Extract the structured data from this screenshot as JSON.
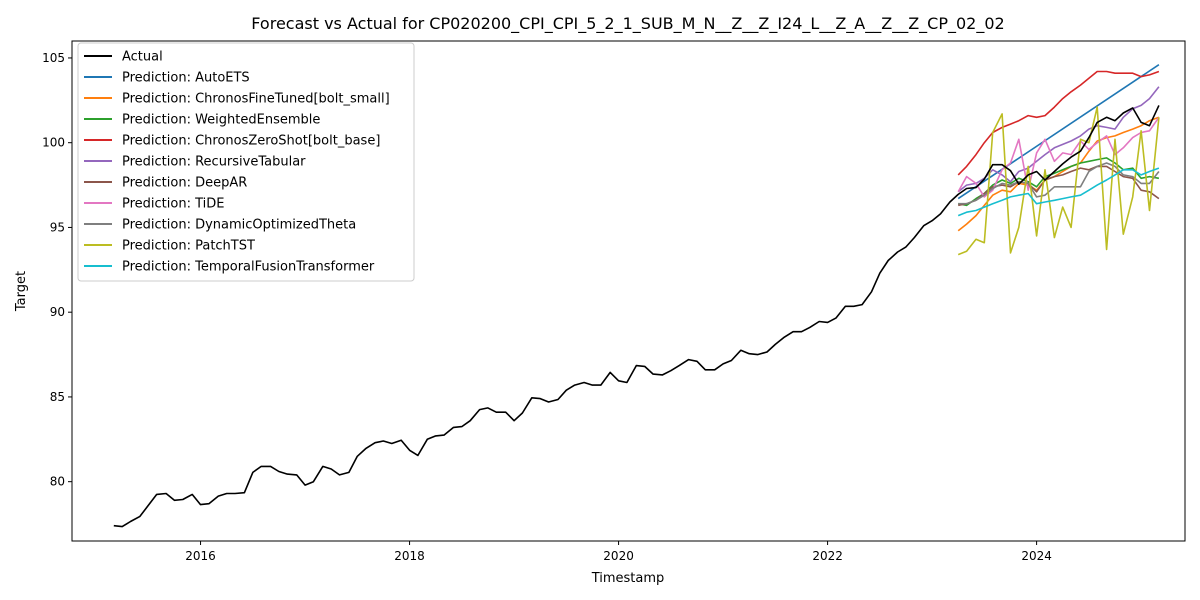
{
  "chart_data": {
    "type": "line",
    "title": "Forecast vs Actual for CP020200_CPI_CPI_5_2_1_SUB_M_N__Z__Z_I24_L__Z_A__Z__Z_CP_02_02",
    "xlabel": "Timestamp",
    "ylabel": "Target",
    "xlim": [
      2014.77,
      2025.42
    ],
    "ylim": [
      76.5,
      106.0
    ],
    "x_ticks": [
      2016,
      2018,
      2020,
      2022,
      2024
    ],
    "y_ticks": [
      80,
      85,
      90,
      95,
      100,
      105
    ],
    "grid": false,
    "legend_position": "top-left",
    "series": [
      {
        "name": "Actual",
        "color": "#000000",
        "x": [
          2015.17,
          2015.25,
          2015.33,
          2015.42,
          2015.5,
          2015.58,
          2015.67,
          2015.75,
          2015.83,
          2015.92,
          2016.0,
          2016.08,
          2016.17,
          2016.25,
          2016.33,
          2016.42,
          2016.5,
          2016.58,
          2016.67,
          2016.75,
          2016.83,
          2016.92,
          2017.0,
          2017.08,
          2017.17,
          2017.25,
          2017.33,
          2017.42,
          2017.5,
          2017.58,
          2017.67,
          2017.75,
          2017.83,
          2017.92,
          2018.0,
          2018.08,
          2018.17,
          2018.25,
          2018.33,
          2018.42,
          2018.5,
          2018.58,
          2018.67,
          2018.75,
          2018.83,
          2018.92,
          2019.0,
          2019.08,
          2019.17,
          2019.25,
          2019.33,
          2019.42,
          2019.5,
          2019.58,
          2019.67,
          2019.75,
          2019.83,
          2019.92,
          2020.0,
          2020.08,
          2020.17,
          2020.25,
          2020.33,
          2020.42,
          2020.5,
          2020.58,
          2020.67,
          2020.75,
          2020.83,
          2020.92,
          2021.0,
          2021.08,
          2021.17,
          2021.25,
          2021.33,
          2021.42,
          2021.5,
          2021.58,
          2021.67,
          2021.75,
          2021.83,
          2021.92,
          2022.0,
          2022.08,
          2022.17,
          2022.25,
          2022.33,
          2022.42,
          2022.5,
          2022.58,
          2022.67,
          2022.75,
          2022.83,
          2022.92,
          2023.0,
          2023.08,
          2023.17,
          2023.25,
          2023.33,
          2023.42,
          2023.5,
          2023.58,
          2023.67,
          2023.75,
          2023.83,
          2023.92,
          2024.0,
          2024.08,
          2024.17,
          2024.25,
          2024.33,
          2024.42,
          2024.5,
          2024.58,
          2024.67,
          2024.75,
          2024.83,
          2024.92,
          2025.0,
          2025.08,
          2025.17
        ],
        "y": [
          77.4,
          77.35,
          77.65,
          77.95,
          78.6,
          79.25,
          79.3,
          78.9,
          78.95,
          79.25,
          78.65,
          78.7,
          79.15,
          79.3,
          79.3,
          79.35,
          80.55,
          80.9,
          80.9,
          80.6,
          80.45,
          80.4,
          79.8,
          80.0,
          80.9,
          80.75,
          80.4,
          80.55,
          81.5,
          81.95,
          82.3,
          82.4,
          82.25,
          82.45,
          81.85,
          81.55,
          82.5,
          82.7,
          82.75,
          83.2,
          83.25,
          83.6,
          84.25,
          84.35,
          84.1,
          84.1,
          83.6,
          84.05,
          84.95,
          84.9,
          84.7,
          84.85,
          85.4,
          85.7,
          85.85,
          85.7,
          85.7,
          86.45,
          85.95,
          85.85,
          86.85,
          86.8,
          86.35,
          86.3,
          86.55,
          86.85,
          87.2,
          87.1,
          86.6,
          86.6,
          86.95,
          87.15,
          87.75,
          87.55,
          87.5,
          87.65,
          88.1,
          88.5,
          88.85,
          88.85,
          89.1,
          89.45,
          89.4,
          89.65,
          90.35,
          90.35,
          90.45,
          91.2,
          92.3,
          93.05,
          93.55,
          93.85,
          94.4,
          95.1,
          95.4,
          95.8,
          96.5,
          96.95,
          97.3,
          97.35,
          97.85,
          98.7,
          98.7,
          98.35,
          97.55,
          98.1,
          98.3,
          97.8,
          98.3,
          98.75,
          99.15,
          99.5,
          100.3,
          101.2,
          101.5,
          101.3,
          101.75,
          102.05,
          101.2,
          101.0,
          102.2
        ]
      },
      {
        "name": "Prediction: AutoETS",
        "color": "#1f77b4",
        "x": [
          2023.25,
          2025.17
        ],
        "y": [
          96.7,
          104.6
        ]
      },
      {
        "name": "Prediction: ChronosFineTuned[bolt_small]",
        "color": "#ff7f0e",
        "x": [
          2023.25,
          2023.33,
          2023.42,
          2023.5,
          2023.58,
          2023.67,
          2023.75,
          2023.83,
          2023.92,
          2024.0,
          2024.08,
          2024.17,
          2024.25,
          2024.33,
          2024.42,
          2024.5,
          2024.58,
          2024.67,
          2024.75,
          2024.83,
          2024.92,
          2025.0,
          2025.08,
          2025.17
        ],
        "y": [
          94.8,
          95.2,
          95.7,
          96.3,
          96.9,
          97.2,
          97.1,
          97.6,
          97.5,
          97.2,
          97.8,
          98.0,
          98.3,
          98.6,
          98.8,
          99.5,
          100.1,
          100.3,
          100.4,
          100.6,
          100.8,
          101.0,
          101.3,
          101.5
        ]
      },
      {
        "name": "Prediction: WeightedEnsemble",
        "color": "#2ca02c",
        "x": [
          2023.25,
          2023.33,
          2023.42,
          2023.5,
          2023.58,
          2023.67,
          2023.75,
          2023.83,
          2023.92,
          2024.0,
          2024.08,
          2024.17,
          2024.25,
          2024.33,
          2024.42,
          2024.5,
          2024.58,
          2024.67,
          2024.75,
          2024.83,
          2024.92,
          2025.0,
          2025.08,
          2025.17
        ],
        "y": [
          96.4,
          96.3,
          96.7,
          97.0,
          97.5,
          97.8,
          97.6,
          97.9,
          97.7,
          97.4,
          98.0,
          98.2,
          98.4,
          98.6,
          98.8,
          98.9,
          99.0,
          99.1,
          98.8,
          98.4,
          98.5,
          97.9,
          98.0,
          97.9
        ]
      },
      {
        "name": "Prediction: ChronosZeroShot[bolt_base]",
        "color": "#d62728",
        "x": [
          2023.25,
          2023.33,
          2023.42,
          2023.5,
          2023.58,
          2023.67,
          2023.75,
          2023.83,
          2023.92,
          2024.0,
          2024.08,
          2024.17,
          2024.25,
          2024.33,
          2024.42,
          2024.5,
          2024.58,
          2024.67,
          2024.75,
          2024.83,
          2024.92,
          2025.0,
          2025.08,
          2025.17
        ],
        "y": [
          98.1,
          98.6,
          99.3,
          100.0,
          100.6,
          100.9,
          101.1,
          101.3,
          101.6,
          101.5,
          101.6,
          102.1,
          102.6,
          103.0,
          103.4,
          103.8,
          104.2,
          104.2,
          104.1,
          104.1,
          104.1,
          103.9,
          104.0,
          104.2
        ]
      },
      {
        "name": "Prediction: RecursiveTabular",
        "color": "#9467bd",
        "x": [
          2023.25,
          2023.33,
          2023.42,
          2023.5,
          2023.58,
          2023.67,
          2023.75,
          2023.83,
          2023.92,
          2024.0,
          2024.08,
          2024.17,
          2024.25,
          2024.33,
          2024.42,
          2024.5,
          2024.58,
          2024.67,
          2024.75,
          2024.83,
          2024.92,
          2025.0,
          2025.08,
          2025.17
        ],
        "y": [
          97.1,
          97.5,
          97.6,
          97.9,
          98.4,
          98.1,
          97.7,
          98.3,
          98.5,
          98.9,
          99.3,
          99.7,
          99.9,
          100.1,
          100.4,
          100.8,
          101.0,
          100.9,
          100.8,
          101.5,
          102.0,
          102.2,
          102.6,
          103.3
        ]
      },
      {
        "name": "Prediction: DeepAR",
        "color": "#8c564b",
        "x": [
          2023.25,
          2023.33,
          2023.42,
          2023.5,
          2023.58,
          2023.67,
          2023.75,
          2023.83,
          2023.92,
          2024.0,
          2024.08,
          2024.17,
          2024.25,
          2024.33,
          2024.42,
          2024.5,
          2024.58,
          2024.67,
          2024.75,
          2024.83,
          2024.92,
          2025.0,
          2025.08,
          2025.17
        ],
        "y": [
          96.3,
          96.4,
          96.6,
          97.0,
          97.4,
          97.5,
          97.4,
          97.7,
          97.6,
          97.1,
          97.8,
          98.0,
          98.1,
          98.3,
          98.5,
          98.4,
          98.6,
          98.6,
          98.3,
          98.0,
          97.9,
          97.2,
          97.1,
          96.7
        ]
      },
      {
        "name": "Prediction: TiDE",
        "color": "#e377c2",
        "x": [
          2023.25,
          2023.33,
          2023.42,
          2023.5,
          2023.58,
          2023.67,
          2023.75,
          2023.83,
          2023.92,
          2024.0,
          2024.08,
          2024.17,
          2024.25,
          2024.33,
          2024.42,
          2024.5,
          2024.58,
          2024.67,
          2024.75,
          2024.83,
          2024.92,
          2025.0,
          2025.08,
          2025.17
        ],
        "y": [
          97.1,
          98.0,
          97.6,
          96.8,
          97.2,
          98.4,
          98.8,
          100.2,
          97.2,
          99.4,
          100.2,
          98.9,
          99.4,
          99.3,
          100.1,
          99.6,
          100.0,
          100.4,
          99.3,
          99.7,
          100.3,
          100.6,
          100.7,
          101.5
        ]
      },
      {
        "name": "Prediction: DynamicOptimizedTheta",
        "color": "#7f7f7f",
        "x": [
          2023.25,
          2023.33,
          2023.42,
          2023.5,
          2023.58,
          2023.67,
          2023.75,
          2023.83,
          2023.92,
          2024.0,
          2024.08,
          2024.17,
          2024.25,
          2024.33,
          2024.42,
          2024.5,
          2024.58,
          2024.67,
          2024.75,
          2024.83,
          2024.92,
          2025.0,
          2025.08,
          2025.17
        ],
        "y": [
          96.4,
          96.4,
          96.6,
          96.9,
          97.3,
          97.6,
          97.5,
          97.7,
          97.6,
          96.8,
          96.9,
          97.4,
          97.4,
          97.4,
          97.4,
          98.3,
          98.6,
          98.8,
          98.6,
          98.1,
          98.0,
          97.6,
          97.6,
          98.3
        ]
      },
      {
        "name": "Prediction: PatchTST",
        "color": "#bcbd22",
        "x": [
          2023.25,
          2023.33,
          2023.42,
          2023.5,
          2023.58,
          2023.67,
          2023.75,
          2023.83,
          2023.92,
          2024.0,
          2024.08,
          2024.17,
          2024.25,
          2024.33,
          2024.42,
          2024.5,
          2024.58,
          2024.67,
          2024.75,
          2024.83,
          2024.92,
          2025.0,
          2025.08,
          2025.17
        ],
        "y": [
          93.4,
          93.6,
          94.3,
          94.1,
          100.6,
          101.7,
          93.5,
          95.0,
          98.6,
          94.5,
          98.4,
          94.4,
          96.2,
          95.0,
          100.2,
          100.0,
          102.1,
          93.7,
          100.2,
          94.6,
          96.8,
          100.7,
          96.0,
          101.5
        ]
      },
      {
        "name": "Prediction: TemporalFusionTransformer",
        "color": "#17becf",
        "x": [
          2023.25,
          2023.33,
          2023.42,
          2023.5,
          2023.58,
          2023.67,
          2023.75,
          2023.83,
          2023.92,
          2024.0,
          2024.08,
          2024.17,
          2024.25,
          2024.33,
          2024.42,
          2024.5,
          2024.58,
          2024.67,
          2024.75,
          2024.83,
          2024.92,
          2025.0,
          2025.08,
          2025.17
        ],
        "y": [
          95.7,
          95.9,
          96.0,
          96.2,
          96.4,
          96.6,
          96.8,
          96.9,
          97.0,
          96.4,
          96.5,
          96.6,
          96.7,
          96.8,
          96.9,
          97.2,
          97.5,
          97.8,
          98.1,
          98.4,
          98.4,
          98.1,
          98.3,
          98.5
        ]
      }
    ]
  }
}
